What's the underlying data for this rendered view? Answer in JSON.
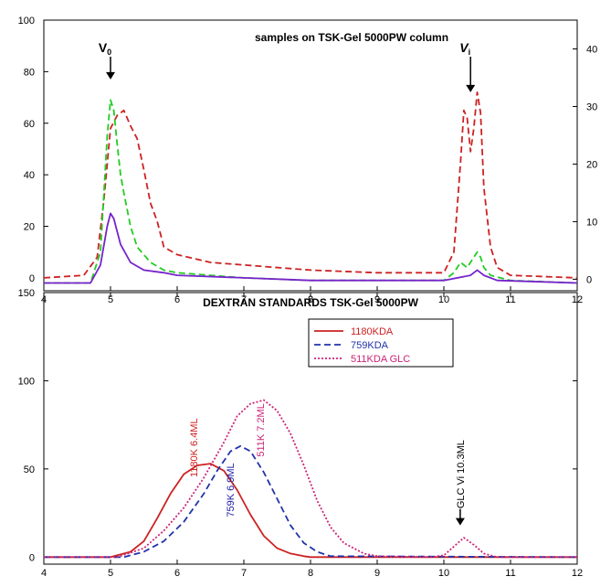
{
  "chart_data": [
    {
      "type": "line",
      "title": "samples on TSK-Gel 5000PW column",
      "xlim": [
        4,
        12
      ],
      "ylim": [
        -5,
        100
      ],
      "y2lim": [
        -2,
        45
      ],
      "x_ticks": [
        4,
        5,
        6,
        7,
        8,
        9,
        10,
        11,
        12
      ],
      "y_ticks": [
        0,
        20,
        40,
        60,
        80,
        100
      ],
      "y2_ticks": [
        0,
        10,
        20,
        30,
        40
      ],
      "annotations": [
        {
          "text": "V",
          "sub": "0",
          "x": 5.0,
          "arrow_to_y": 77
        },
        {
          "text": "V",
          "sub": "i",
          "x": 10.4,
          "arrow_to_y": 72
        }
      ],
      "series": [
        {
          "color": "#cc2222",
          "style": "dashed",
          "axis": "left",
          "x": [
            4.0,
            4.6,
            4.8,
            4.9,
            5.0,
            5.1,
            5.2,
            5.3,
            5.4,
            5.5,
            5.6,
            5.7,
            5.8,
            6.0,
            6.5,
            7.0,
            8.0,
            9.0,
            10.0,
            10.15,
            10.25,
            10.3,
            10.35,
            10.4,
            10.45,
            10.5,
            10.55,
            10.6,
            10.7,
            10.8,
            11.0,
            12.0
          ],
          "y": [
            0,
            1,
            8,
            30,
            58,
            63,
            65,
            59,
            54,
            42,
            29,
            22,
            12,
            9,
            6,
            5,
            3,
            2,
            2,
            10,
            45,
            65,
            62,
            49,
            58,
            72,
            64,
            35,
            12,
            4,
            1,
            0
          ]
        },
        {
          "color": "#22cc22",
          "style": "dashed",
          "axis": "left",
          "x": [
            4.0,
            4.7,
            4.85,
            4.95,
            5.0,
            5.05,
            5.1,
            5.15,
            5.2,
            5.3,
            5.4,
            5.6,
            5.8,
            6.0,
            6.5,
            7.0,
            8.0,
            10.0,
            10.15,
            10.25,
            10.35,
            10.45,
            10.5,
            10.55,
            10.6,
            10.7,
            11.0,
            12.0
          ],
          "y": [
            -2,
            -2,
            10,
            55,
            69,
            65,
            52,
            40,
            33,
            20,
            12,
            6,
            3,
            2,
            1,
            0,
            -1,
            -1,
            2,
            6,
            4,
            8,
            10,
            8,
            4,
            1,
            -1,
            -2
          ]
        },
        {
          "color": "#7722cc",
          "style": "solid",
          "axis": "left",
          "x": [
            4.0,
            4.7,
            4.85,
            4.95,
            5.0,
            5.05,
            5.15,
            5.3,
            5.5,
            5.8,
            6.0,
            7.0,
            8.0,
            10.0,
            10.4,
            10.5,
            10.6,
            10.8,
            12.0
          ],
          "y": [
            -2,
            -2,
            5,
            20,
            25,
            23,
            13,
            6,
            3,
            2,
            1,
            0,
            -1,
            -1,
            1,
            3,
            1,
            -1,
            -2
          ]
        }
      ]
    },
    {
      "type": "line",
      "title": "DEXTRAN STANDARDS TSK-Gel 5000PW",
      "xlim": [
        4,
        12
      ],
      "ylim": [
        -4,
        150
      ],
      "x_ticks": [
        4,
        5,
        6,
        7,
        8,
        9,
        10,
        11,
        12
      ],
      "y_ticks": [
        0,
        50,
        100,
        150
      ],
      "legend_position": "top-center",
      "annotations": [
        {
          "text": "1180K 6.4ML",
          "x": 6.3,
          "y": 62,
          "rotated": true,
          "color": "#cc2222"
        },
        {
          "text": "759K 6.9ML",
          "x": 6.85,
          "y": 38,
          "rotated": true,
          "color": "#2222aa"
        },
        {
          "text": "511K 7.2ML",
          "x": 7.3,
          "y": 72,
          "rotated": true,
          "color": "#cc2277"
        },
        {
          "text": "GLC Vi 10.3ML",
          "x": 10.3,
          "y": 47,
          "rotated": true,
          "color": "#000000",
          "arrow_to_y": 18
        }
      ],
      "series": [
        {
          "name": "1180KDA",
          "color": "#cc2222",
          "style": "solid",
          "x": [
            4.0,
            5.0,
            5.3,
            5.5,
            5.7,
            5.9,
            6.1,
            6.3,
            6.5,
            6.7,
            6.9,
            7.1,
            7.3,
            7.5,
            7.7,
            7.9,
            8.0,
            12.0
          ],
          "y": [
            0,
            0,
            3,
            9,
            22,
            36,
            47,
            52,
            53,
            49,
            38,
            24,
            12,
            5,
            2,
            0.5,
            0,
            0
          ]
        },
        {
          "name": "759KDA",
          "color": "#2233aa",
          "style": "dashed",
          "x": [
            4.0,
            5.2,
            5.5,
            5.8,
            6.1,
            6.4,
            6.6,
            6.8,
            6.95,
            7.1,
            7.3,
            7.5,
            7.7,
            7.9,
            8.1,
            8.3,
            12.0
          ],
          "y": [
            0,
            0,
            3,
            9,
            20,
            36,
            49,
            60,
            63,
            60,
            48,
            33,
            18,
            8,
            3,
            0.5,
            0
          ]
        },
        {
          "name": "511KDA GLC",
          "color": "#cc2277",
          "style": "dotted",
          "x": [
            4.0,
            5.1,
            5.5,
            5.8,
            6.1,
            6.4,
            6.7,
            6.9,
            7.1,
            7.3,
            7.5,
            7.7,
            7.9,
            8.1,
            8.3,
            8.5,
            8.8,
            9.0,
            9.8,
            10.0,
            10.15,
            10.3,
            10.45,
            10.6,
            10.8,
            12.0
          ],
          "y": [
            0,
            0,
            5,
            15,
            28,
            45,
            65,
            80,
            87,
            89,
            83,
            70,
            52,
            32,
            17,
            8,
            2,
            0.5,
            0,
            1,
            6,
            11,
            7,
            2,
            0,
            0
          ]
        }
      ]
    }
  ]
}
